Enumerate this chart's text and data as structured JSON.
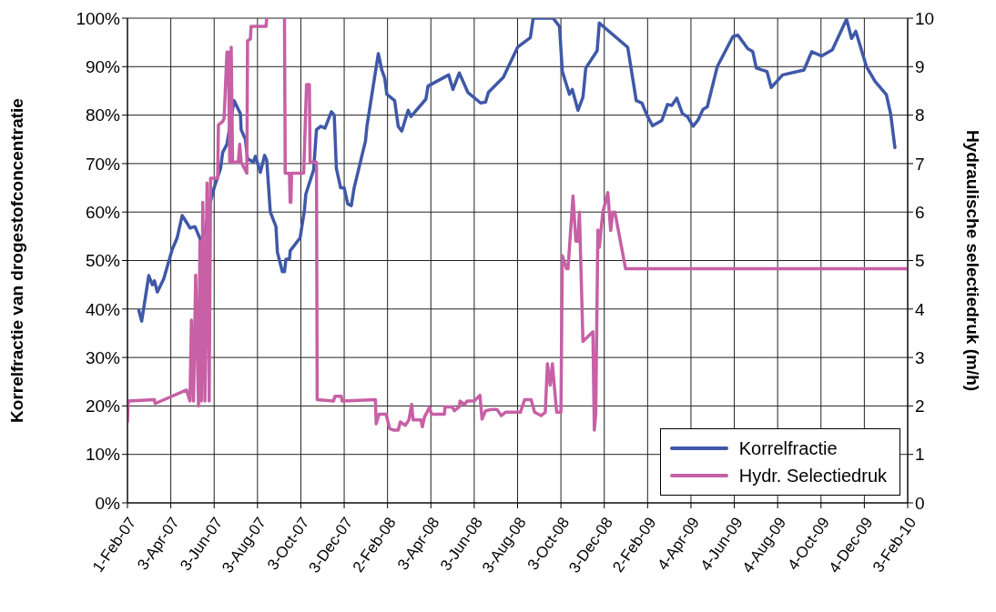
{
  "chart_data": {
    "type": "line",
    "ylabel": "Korrelfractie van drogestofconcentratie",
    "y2label": "Hydraulische selectiedruk (m/h)",
    "xlim": [
      "2007-02-01",
      "2010-02-03"
    ],
    "xticks": [
      {
        "value": "2007-02-01",
        "label": "1-Feb-07"
      },
      {
        "value": "2007-04-03",
        "label": "3-Apr-07"
      },
      {
        "value": "2007-06-03",
        "label": "3-Jun-07"
      },
      {
        "value": "2007-08-03",
        "label": "3-Aug-07"
      },
      {
        "value": "2007-10-03",
        "label": "3-Oct-07"
      },
      {
        "value": "2007-12-03",
        "label": "3-Dec-07"
      },
      {
        "value": "2008-02-02",
        "label": "2-Feb-08"
      },
      {
        "value": "2008-04-03",
        "label": "3-Apr-08"
      },
      {
        "value": "2008-06-03",
        "label": "3-Jun-08"
      },
      {
        "value": "2008-08-03",
        "label": "3-Aug-08"
      },
      {
        "value": "2008-10-03",
        "label": "3-Oct-08"
      },
      {
        "value": "2008-12-03",
        "label": "3-Dec-08"
      },
      {
        "value": "2009-02-02",
        "label": "2-Feb-09"
      },
      {
        "value": "2009-04-04",
        "label": "4-Apr-09"
      },
      {
        "value": "2009-06-04",
        "label": "4-Jun-09"
      },
      {
        "value": "2009-08-04",
        "label": "4-Aug-09"
      },
      {
        "value": "2009-10-04",
        "label": "4-Oct-09"
      },
      {
        "value": "2009-12-04",
        "label": "4-Dec-09"
      },
      {
        "value": "2010-02-03",
        "label": "3-Feb-10"
      }
    ],
    "ylim": [
      0,
      100
    ],
    "yticks": [
      {
        "value": 0,
        "label": "0%"
      },
      {
        "value": 10,
        "label": "10%"
      },
      {
        "value": 20,
        "label": "20%"
      },
      {
        "value": 30,
        "label": "30%"
      },
      {
        "value": 40,
        "label": "40%"
      },
      {
        "value": 50,
        "label": "50%"
      },
      {
        "value": 60,
        "label": "60%"
      },
      {
        "value": 70,
        "label": "70%"
      },
      {
        "value": 80,
        "label": "80%"
      },
      {
        "value": 90,
        "label": "90%"
      },
      {
        "value": 100,
        "label": "100%"
      }
    ],
    "y2lim": [
      0,
      10
    ],
    "y2ticks": [
      0,
      1,
      2,
      3,
      4,
      5,
      6,
      7,
      8,
      9,
      10
    ],
    "grid": true,
    "legend": "bottom right",
    "marker": "none",
    "line_style": "solid",
    "series": [
      {
        "name": "Korrelfractie",
        "color": "#3f58a8",
        "x": [
          "2007-02-17",
          "2007-02-21",
          "2007-03-03",
          "2007-03-08",
          "2007-03-11",
          "2007-03-15",
          "2007-03-24",
          "2007-04-05",
          "2007-04-12",
          "2007-04-19",
          "2007-04-26",
          "2007-04-30",
          "2007-05-07",
          "2007-05-15",
          "2007-05-22",
          "2007-05-26",
          "2007-06-03",
          "2007-06-12",
          "2007-06-15",
          "2007-06-21",
          "2007-07-01",
          "2007-07-10",
          "2007-07-11",
          "2007-07-17",
          "2007-07-20",
          "2007-07-28",
          "2007-07-31",
          "2007-08-07",
          "2007-08-13",
          "2007-08-16",
          "2007-08-21",
          "2007-08-29",
          "2007-08-31",
          "2007-09-07",
          "2007-09-10",
          "2007-09-12",
          "2007-09-17",
          "2007-09-18",
          "2007-10-02",
          "2007-10-08",
          "2007-10-10",
          "2007-10-21",
          "2007-10-25",
          "2007-10-31",
          "2007-11-06",
          "2007-11-15",
          "2007-11-19",
          "2007-11-22",
          "2007-11-28",
          "2007-12-03",
          "2007-12-08",
          "2007-12-13",
          "2007-12-17",
          "2008-01-02",
          "2008-01-04",
          "2008-01-20",
          "2008-01-25",
          "2008-01-29",
          "2008-02-01",
          "2008-02-12",
          "2008-02-17",
          "2008-02-22",
          "2008-03-02",
          "2008-03-06",
          "2008-03-27",
          "2008-03-30",
          "2008-04-28",
          "2008-05-04",
          "2008-05-13",
          "2008-05-25",
          "2008-06-12",
          "2008-06-19",
          "2008-06-23",
          "2008-07-14",
          "2008-08-03",
          "2008-08-21",
          "2008-08-25",
          "2008-09-22",
          "2008-10-01",
          "2008-10-05",
          "2008-10-15",
          "2008-10-19",
          "2008-10-27",
          "2008-11-03",
          "2008-11-07",
          "2008-11-23",
          "2008-11-26",
          "2009-01-05",
          "2009-01-17",
          "2009-01-25",
          "2009-02-01",
          "2009-02-09",
          "2009-02-22",
          "2009-03-02",
          "2009-03-08",
          "2009-03-15",
          "2009-03-23",
          "2009-03-30",
          "2009-04-07",
          "2009-04-14",
          "2009-04-21",
          "2009-04-27",
          "2009-05-11",
          "2009-06-02",
          "2009-06-09",
          "2009-06-23",
          "2009-06-30",
          "2009-07-05",
          "2009-07-20",
          "2009-07-26",
          "2009-08-11",
          "2009-09-10",
          "2009-09-21",
          "2009-10-05",
          "2009-10-20",
          "2009-11-09",
          "2009-11-16",
          "2009-11-22",
          "2009-12-07",
          "2009-12-19",
          "2010-01-04",
          "2010-01-10",
          "2010-01-16"
        ],
        "values": [
          39.7,
          37.5,
          46.9,
          45,
          45.8,
          43.5,
          46.2,
          52.3,
          54.7,
          59.3,
          57.7,
          56.7,
          57,
          54.2,
          56,
          60.7,
          65,
          69,
          72.3,
          74,
          83,
          80.3,
          77,
          75,
          71,
          70.3,
          71.5,
          68.2,
          71.7,
          70.7,
          60,
          57,
          51.7,
          47.7,
          47.7,
          50.3,
          50.3,
          52,
          54.7,
          60.3,
          63.7,
          68.7,
          77,
          77.7,
          77.3,
          80.7,
          80,
          69,
          65,
          65,
          61.7,
          61.3,
          65,
          74.7,
          77.7,
          92.7,
          89.3,
          87.7,
          84.3,
          83,
          77.7,
          76.7,
          81,
          79.7,
          83.3,
          86,
          88.3,
          85.3,
          88.7,
          84.7,
          82.5,
          82.7,
          84.7,
          87.8,
          94,
          96,
          100,
          100,
          98.3,
          89,
          84.3,
          85.3,
          81,
          83.7,
          89.7,
          93.3,
          99,
          94,
          83,
          82.5,
          80,
          77.8,
          78.9,
          82.2,
          82,
          83.5,
          80.3,
          79.7,
          77.7,
          79,
          81.2,
          81.7,
          90,
          96.2,
          96.5,
          93.7,
          93.1,
          89.7,
          89,
          85.7,
          88.3,
          89.3,
          93.1,
          92.2,
          93.5,
          99.8,
          95.8,
          97.3,
          90,
          87,
          84.2,
          80.3,
          73.3
        ]
      },
      {
        "name": "Hydr. Selectiedruk",
        "color": "#c760a5",
        "axis": "y2",
        "x": [
          "2007-02-01",
          "2007-02-02",
          "2007-03-11",
          "2007-03-12",
          "2007-04-25",
          "2007-04-30",
          "2007-05-02",
          "2007-05-05",
          "2007-05-08",
          "2007-05-12",
          "2007-05-14",
          "2007-05-16",
          "2007-05-18",
          "2007-05-21",
          "2007-05-24",
          "2007-05-27",
          "2007-05-29",
          "2007-06-08",
          "2007-06-09",
          "2007-06-15",
          "2007-06-17",
          "2007-06-21",
          "2007-06-23",
          "2007-06-25",
          "2007-06-27",
          "2007-06-29",
          "2007-07-07",
          "2007-07-09",
          "2007-07-11",
          "2007-07-19",
          "2007-07-20",
          "2007-07-24",
          "2007-07-25",
          "2007-08-15",
          "2007-08-16",
          "2007-08-30",
          "2007-09-10",
          "2007-09-11",
          "2007-09-17",
          "2007-09-18",
          "2007-09-19",
          "2007-09-20",
          "2007-10-07",
          "2007-10-11",
          "2007-10-15",
          "2007-10-16",
          "2007-10-25",
          "2007-10-26",
          "2007-11-18",
          "2007-11-20",
          "2007-11-29",
          "2007-11-30",
          "2008-01-16",
          "2008-01-17",
          "2008-01-21",
          "2008-01-31",
          "2008-02-05",
          "2008-02-11",
          "2008-02-17",
          "2008-02-20",
          "2008-02-27",
          "2008-03-03",
          "2008-03-07",
          "2008-03-09",
          "2008-03-20",
          "2008-03-22",
          "2008-03-25",
          "2008-04-01",
          "2008-04-04",
          "2008-04-22",
          "2008-04-23",
          "2008-05-03",
          "2008-05-06",
          "2008-05-13",
          "2008-05-14",
          "2008-05-20",
          "2008-05-24",
          "2008-06-03",
          "2008-06-11",
          "2008-06-14",
          "2008-06-19",
          "2008-06-28",
          "2008-07-05",
          "2008-07-11",
          "2008-07-17",
          "2008-08-07",
          "2008-08-13",
          "2008-08-22",
          "2008-08-27",
          "2008-09-05",
          "2008-09-11",
          "2008-09-14",
          "2008-09-18",
          "2008-09-21",
          "2008-09-27",
          "2008-10-03",
          "2008-10-05",
          "2008-10-11",
          "2008-10-13",
          "2008-10-20",
          "2008-10-24",
          "2008-10-27",
          "2008-10-29",
          "2008-11-03",
          "2008-11-17",
          "2008-11-19",
          "2008-11-21",
          "2008-11-24",
          "2008-11-26",
          "2008-12-01",
          "2008-12-08",
          "2008-12-12",
          "2008-12-15",
          "2008-12-18",
          "2009-01-02",
          "2010-02-02"
        ],
        "values": [
          1.67,
          2.1,
          2.13,
          2.05,
          2.33,
          2.1,
          3.77,
          2.1,
          4.7,
          2.0,
          5.4,
          2.1,
          6.2,
          2.1,
          6.6,
          2.1,
          6.7,
          6.7,
          7.8,
          7.87,
          7.93,
          9.3,
          9.3,
          7.03,
          9.4,
          7.03,
          7.03,
          7.4,
          7.03,
          6.8,
          9.53,
          9.57,
          9.83,
          9.83,
          10,
          null,
          10,
          6.8,
          6.8,
          6.2,
          6.2,
          6.8,
          6.8,
          8.63,
          8.63,
          7.03,
          7.03,
          2.13,
          2.1,
          2.2,
          2.2,
          2.1,
          2.13,
          1.63,
          1.83,
          1.83,
          1.53,
          1.5,
          1.5,
          1.67,
          1.6,
          1.71,
          2.03,
          1.71,
          1.71,
          1.57,
          1.77,
          1.97,
          1.83,
          1.83,
          1.98,
          1.98,
          1.9,
          1.98,
          2.1,
          2.03,
          2.1,
          2.1,
          2.22,
          1.73,
          1.9,
          1.93,
          1.93,
          1.8,
          1.87,
          1.87,
          2.13,
          2.13,
          1.87,
          1.8,
          1.87,
          2.87,
          2.43,
          2.87,
          1.87,
          1.87,
          5.1,
          4.83,
          4.83,
          6.33,
          5.4,
          5.4,
          6.0,
          3.33,
          3.53,
          1.5,
          1.83,
          5.63,
          5.27,
          6.0,
          6.4,
          5.62,
          6.0,
          6.0,
          4.83,
          4.83
        ]
      }
    ]
  }
}
